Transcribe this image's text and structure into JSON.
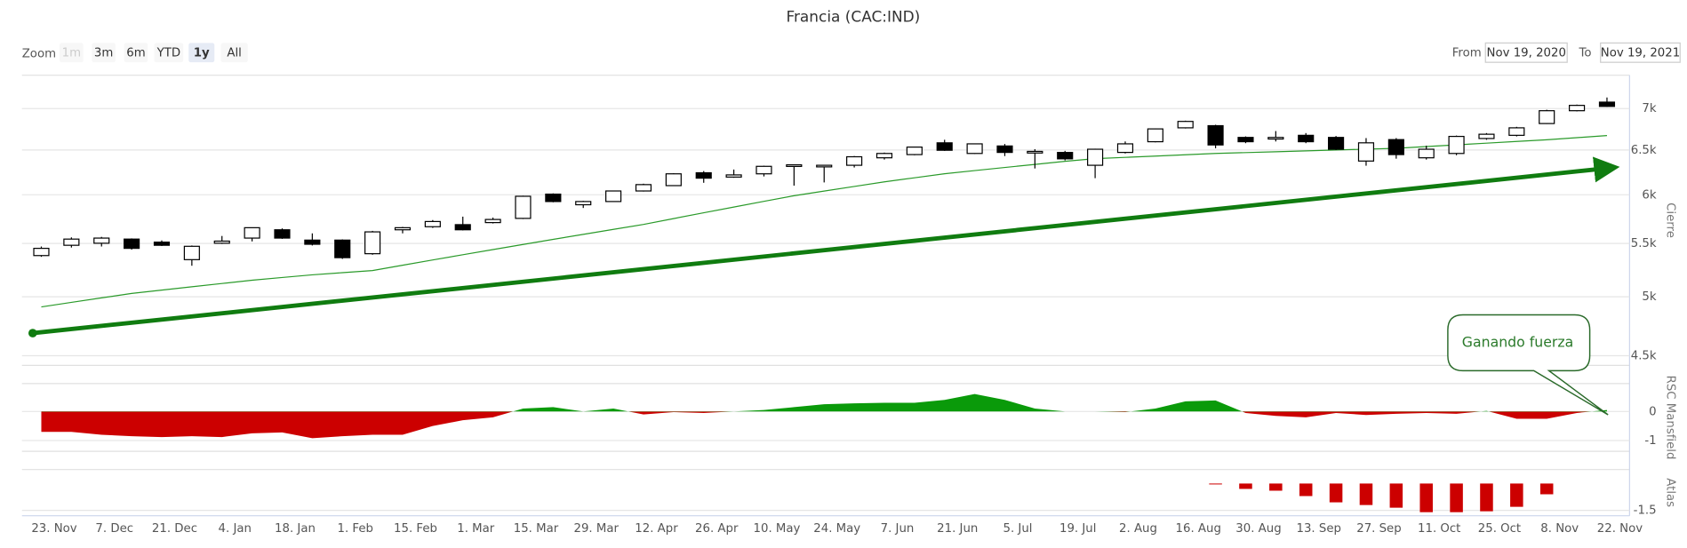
{
  "header": {
    "title": "Francia (CAC:IND)"
  },
  "range_selector": {
    "zoom_label": "Zoom",
    "buttons": [
      "1m",
      "3m",
      "6m",
      "YTD",
      "1y",
      "All"
    ],
    "selected": "1y",
    "disabled": "1m",
    "from_label": "From",
    "from": "Nov 19, 2020",
    "to_label": "To",
    "to": "Nov 19, 2021"
  },
  "chart_data": [
    {
      "type": "candlestick",
      "ylabel": "Cierre",
      "log": true,
      "grid": true,
      "categories": [
        "23. Nov",
        null,
        "7. Dec",
        null,
        "21. Dec",
        null,
        "4. Jan",
        null,
        "18. Jan",
        null,
        "1. Feb",
        null,
        "15. Feb",
        null,
        "1. Mar",
        null,
        "15. Mar",
        null,
        "29. Mar",
        null,
        "12. Apr",
        null,
        "26. Apr",
        null,
        "10. May",
        null,
        "24. May",
        null,
        "7. Jun",
        null,
        "21. Jun",
        null,
        "5. Jul",
        null,
        "19. Jul",
        null,
        "2. Aug",
        null,
        "16. Aug",
        null,
        "30. Aug",
        null,
        "13. Sep",
        null,
        "27. Sep",
        null,
        "11. Oct",
        null,
        "25. Oct",
        null,
        "8. Nov",
        null,
        "22. Nov"
      ],
      "open": [
        5382,
        5482,
        5502,
        5543,
        5513,
        5343,
        5502,
        5553,
        5636,
        5533,
        5533,
        5400,
        5636,
        5667,
        5688,
        5709,
        5752,
        6007,
        5894,
        5928,
        6041,
        6099,
        6241,
        6193,
        6229,
        6325,
        6322,
        6325,
        6410,
        6447,
        6584,
        6460,
        6547,
        6480,
        6472,
        6325,
        6472,
        6597,
        6763,
        6789,
        6648,
        6640,
        6673,
        6648,
        6373,
        6622,
        6410,
        6460,
        6635,
        6673,
        6815,
        6973,
        7081
      ],
      "high": [
        5470,
        5560,
        5565,
        5550,
        5530,
        5480,
        5574,
        5660,
        5650,
        5600,
        5540,
        5625,
        5665,
        5735,
        5770,
        5760,
        5990,
        6015,
        5935,
        6045,
        6120,
        6235,
        6260,
        6277,
        6320,
        6335,
        6330,
        6430,
        6470,
        6540,
        6620,
        6575,
        6570,
        6510,
        6490,
        6515,
        6600,
        6755,
        6850,
        6800,
        6660,
        6724,
        6700,
        6665,
        6640,
        6640,
        6550,
        6670,
        6700,
        6775,
        6985,
        7050,
        7140
      ],
      "low": [
        5370,
        5460,
        5470,
        5440,
        5475,
        5285,
        5495,
        5520,
        5545,
        5480,
        5350,
        5390,
        5600,
        5655,
        5630,
        5700,
        5745,
        5920,
        5860,
        5925,
        6035,
        6095,
        6130,
        6185,
        6200,
        6099,
        6134,
        6300,
        6390,
        6440,
        6490,
        6455,
        6430,
        6289,
        6380,
        6181,
        6460,
        6590,
        6755,
        6520,
        6580,
        6600,
        6580,
        6500,
        6320,
        6400,
        6390,
        6440,
        6620,
        6660,
        6810,
        6965,
        7020
      ],
      "close": [
        5452,
        5543,
        5553,
        5452,
        5482,
        5472,
        5523,
        5657,
        5553,
        5492,
        5362,
        5615,
        5657,
        5720,
        5636,
        5741,
        5984,
        5928,
        5928,
        6041,
        6110,
        6229,
        6181,
        6217,
        6313,
        6330,
        6325,
        6422,
        6460,
        6534,
        6497,
        6572,
        6472,
        6484,
        6398,
        6509,
        6572,
        6750,
        6841,
        6559,
        6597,
        6648,
        6597,
        6509,
        6584,
        6447,
        6509,
        6660,
        6686,
        6763,
        6973,
        7040,
        7027
      ],
      "ma": [
        4910,
        4950,
        4990,
        5030,
        5060,
        5090,
        5120,
        5150,
        5175,
        5200,
        5220,
        5240,
        5290,
        5340,
        5390,
        5440,
        5490,
        5540,
        5590,
        5640,
        5690,
        5750,
        5810,
        5870,
        5930,
        5990,
        6040,
        6090,
        6140,
        6185,
        6230,
        6265,
        6300,
        6335,
        6370,
        6400,
        6415,
        6430,
        6445,
        6460,
        6470,
        6480,
        6490,
        6500,
        6510,
        6520,
        6540,
        6560,
        6580,
        6600,
        6620,
        6645,
        6670
      ],
      "up_color": "#ffffff",
      "down_color": "#000000",
      "ma_color": "#2a9a2a",
      "trend_color": "#107c10",
      "ylim": [
        4423,
        7430
      ],
      "yticks": [
        {
          "value": 4500,
          "label": "4.5k"
        },
        {
          "value": 5000,
          "label": "5k"
        },
        {
          "value": 5500,
          "label": "5.5k"
        },
        {
          "value": 6000,
          "label": "6k"
        },
        {
          "value": 6500,
          "label": "6.5k"
        },
        {
          "value": 7000,
          "label": "7k"
        }
      ],
      "annotation": "Ganando fuerza"
    },
    {
      "type": "area",
      "ylabel": "RSC Mansfield",
      "grid": true,
      "pos_color": "#0a9a0a",
      "neg_color": "#cc0000",
      "values": [
        -0.7,
        -0.7,
        -0.8,
        -0.85,
        -0.88,
        -0.85,
        -0.88,
        -0.75,
        -0.72,
        -0.92,
        -0.85,
        -0.8,
        -0.8,
        -0.5,
        -0.3,
        -0.2,
        0.1,
        0.15,
        0,
        0.1,
        -0.1,
        -0.02,
        -0.05,
        0,
        0.05,
        0.15,
        0.25,
        0.28,
        0.3,
        0.3,
        0.4,
        0.6,
        0.4,
        0.1,
        0,
        0,
        -0.02,
        0.1,
        0.35,
        0.38,
        -0.05,
        -0.15,
        -0.2,
        -0.05,
        -0.12,
        -0.08,
        -0.05,
        -0.08,
        0.02,
        -0.25,
        -0.25,
        -0.05,
        0.05
      ],
      "ylim": [
        -1.37,
        0.96
      ],
      "yticks": [
        -1,
        0
      ]
    },
    {
      "type": "bar",
      "ylabel": "Atlas",
      "grid": true,
      "color": "#cc0000",
      "values": [
        null,
        null,
        null,
        null,
        null,
        null,
        null,
        null,
        null,
        null,
        null,
        null,
        null,
        null,
        null,
        null,
        null,
        null,
        null,
        null,
        null,
        null,
        null,
        null,
        null,
        null,
        null,
        null,
        null,
        null,
        null,
        null,
        null,
        null,
        null,
        null,
        null,
        null,
        null,
        -0.05,
        -0.3,
        -0.4,
        -0.7,
        -1.05,
        -1.2,
        -1.35,
        -1.6,
        -1.6,
        -1.55,
        -1.3,
        -0.6,
        null,
        null
      ],
      "ylim": [
        -1.8,
        0.78
      ],
      "yticks": [
        -1.5
      ]
    }
  ]
}
